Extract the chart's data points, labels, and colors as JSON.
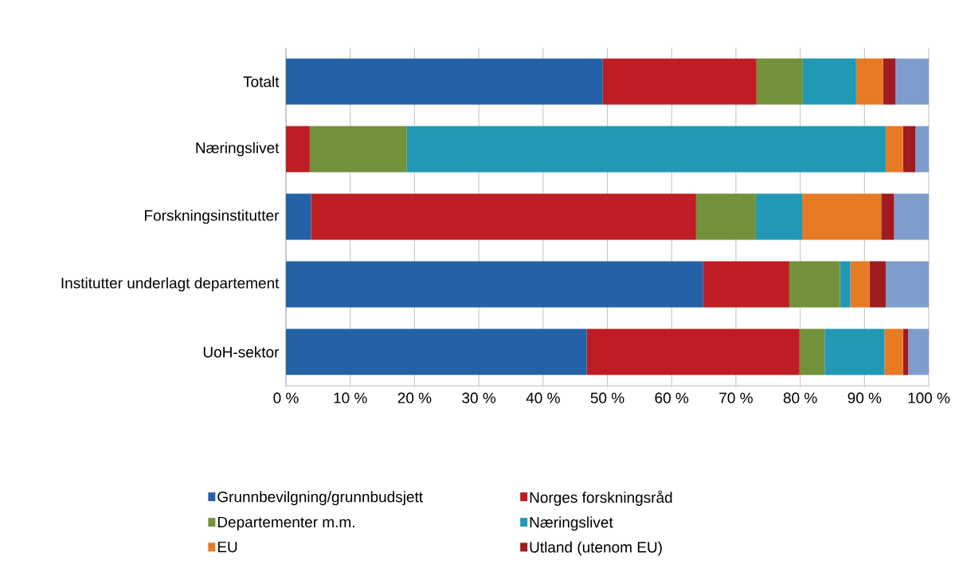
{
  "chart_data": {
    "type": "bar",
    "orientation": "horizontal",
    "stacked": true,
    "categories": [
      "Totalt",
      "Næringslivet",
      "Forskningsinstitutter",
      "Institutter underlagt departement",
      "UoH-sektor"
    ],
    "series": [
      {
        "name": "Grunnbevilgning/grunnbudsjett",
        "color": "#2462a8",
        "values": [
          49.3,
          0,
          3.9,
          64.9,
          46.8
        ]
      },
      {
        "name": "Norges forskningsråd",
        "color": "#be1e23",
        "values": [
          23.9,
          3.7,
          59.9,
          13.4,
          33.1
        ]
      },
      {
        "name": "Departementer m.m.",
        "color": "#71913b",
        "values": [
          7.2,
          15.1,
          9.3,
          7.9,
          3.9
        ]
      },
      {
        "name": "Næringslivet",
        "color": "#2199b5",
        "values": [
          8.3,
          74.5,
          7.2,
          1.6,
          9.3
        ]
      },
      {
        "name": "EU",
        "color": "#e87a24",
        "values": [
          4.2,
          2.7,
          12.3,
          3.0,
          2.9
        ]
      },
      {
        "name": "Utland (utenom EU)",
        "color": "#a01c20",
        "values": [
          1.9,
          1.9,
          2.0,
          2.5,
          0.8
        ]
      },
      {
        "color": "#7f9dcc",
        "values": [
          5.2,
          2.1,
          5.4,
          6.7,
          3.2
        ]
      }
    ],
    "xlim": [
      0,
      100
    ],
    "xticks": [
      {
        "value": 0,
        "label": "0 %"
      },
      {
        "value": 10,
        "label": "10 %"
      },
      {
        "value": 20,
        "label": "20 %"
      },
      {
        "value": 30,
        "label": "30 %"
      },
      {
        "value": 40,
        "label": "40 %"
      },
      {
        "value": 50,
        "label": "50 %"
      },
      {
        "value": 60,
        "label": "60 %"
      },
      {
        "value": 70,
        "label": "70 %"
      },
      {
        "value": 80,
        "label": "80 %"
      },
      {
        "value": 90,
        "label": "90 %"
      },
      {
        "value": 100,
        "label": "100 %"
      }
    ],
    "grid": "x",
    "legend": "bottom"
  }
}
